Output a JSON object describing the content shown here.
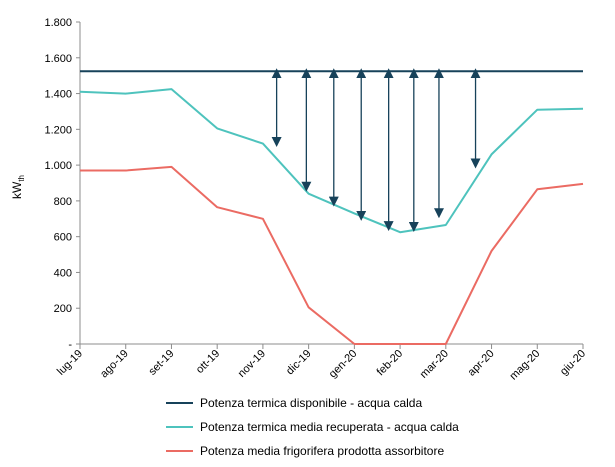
{
  "chart_data": {
    "type": "line",
    "categories": [
      "lug-19",
      "ago-19",
      "set-19",
      "ott-19",
      "nov-19",
      "dic-19",
      "gen-20",
      "feb-20",
      "mar-20",
      "apr-20",
      "mag-20",
      "giu-20"
    ],
    "ylabel": "kW",
    "ylabel_subscript": "th",
    "ylim": [
      0,
      1800
    ],
    "y_ticks": [
      0,
      200,
      400,
      600,
      800,
      1000,
      1200,
      1400,
      1600,
      1800
    ],
    "y_tick_labels": [
      "-",
      "200",
      "400",
      "600",
      "800",
      "1.000",
      "1.200",
      "1.400",
      "1.600",
      "1.800"
    ],
    "grid": false,
    "legend_position": "bottom",
    "series": [
      {
        "name": "Potenza termica disponibile - acqua calda",
        "color": "#17425a",
        "values": [
          1525,
          1525,
          1525,
          1525,
          1525,
          1525,
          1525,
          1525,
          1525,
          1525,
          1525,
          1525
        ]
      },
      {
        "name": "Potenza termica media recuperata - acqua calda",
        "color": "#4ec3bd",
        "values": [
          1410,
          1400,
          1425,
          1205,
          1120,
          840,
          730,
          625,
          665,
          1060,
          1310,
          1315
        ]
      },
      {
        "name": "Potenza media frigorifera prodotta assorbitore",
        "color": "#eb6b63",
        "values": [
          970,
          970,
          990,
          765,
          700,
          205,
          0,
          0,
          0,
          520,
          865,
          895
        ]
      }
    ],
    "annotations": {
      "arrow_color": "#17425a",
      "double_arrows": [
        {
          "x": 4.3,
          "from": 1525,
          "to": 1118
        },
        {
          "x": 4.95,
          "from": 1525,
          "to": 868
        },
        {
          "x": 5.55,
          "from": 1525,
          "to": 785
        },
        {
          "x": 6.15,
          "from": 1525,
          "to": 705
        },
        {
          "x": 6.75,
          "from": 1525,
          "to": 648
        },
        {
          "x": 7.3,
          "from": 1525,
          "to": 643
        },
        {
          "x": 7.85,
          "from": 1525,
          "to": 720
        },
        {
          "x": 8.65,
          "from": 1525,
          "to": 998
        }
      ]
    }
  }
}
